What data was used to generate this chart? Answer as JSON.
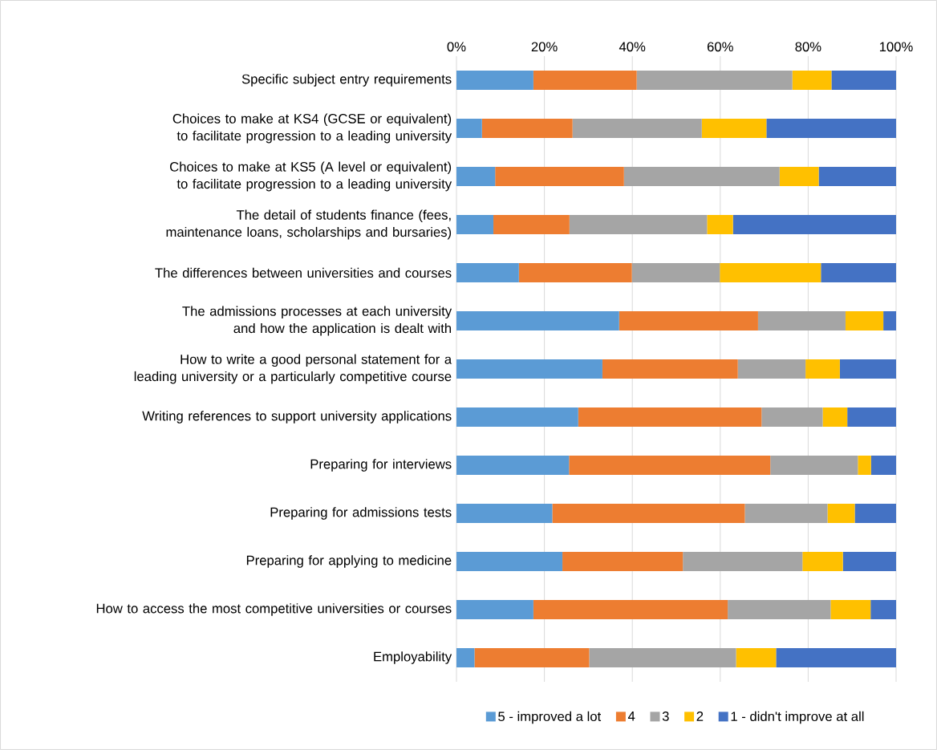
{
  "chart_data": {
    "type": "bar",
    "orientation": "horizontal",
    "stacked": true,
    "categories": [
      "Specific subject entry requirements",
      "Choices to make at KS4 (GCSE or equivalent) to facilitate progression to a leading university",
      "Choices to make at KS5 (A level or equivalent) to facilitate progression to a leading university",
      "The detail of students finance (fees, maintenance loans, scholarships and bursaries)",
      "The differences between universities and courses",
      "The admissions processes at each university and how the application is dealt with",
      "How to write a good personal statement for a leading university or a particularly competitive course",
      "Writing references to support university applications",
      "Preparing for interviews",
      "Preparing for admissions tests",
      "Preparing for applying to medicine",
      "How to access the most competitive universities or courses",
      "Employability"
    ],
    "series": [
      {
        "name": "5 - improved a lot",
        "color": "#5b9bd5",
        "values": [
          17.5,
          5.8,
          8.8,
          8.4,
          14.2,
          37.0,
          33.2,
          27.7,
          25.6,
          21.8,
          24.1,
          17.5,
          4.1
        ]
      },
      {
        "name": "4",
        "color": "#ed7d31",
        "values": [
          23.5,
          20.6,
          29.3,
          17.3,
          25.7,
          31.6,
          30.8,
          41.7,
          45.8,
          43.8,
          27.4,
          44.2,
          26.1
        ]
      },
      {
        "name": "3",
        "color": "#a5a5a5",
        "values": [
          35.4,
          29.4,
          35.4,
          31.3,
          20.0,
          19.9,
          15.4,
          13.9,
          19.9,
          18.8,
          27.2,
          23.4,
          33.4
        ]
      },
      {
        "name": "2",
        "color": "#ffc000",
        "values": [
          8.9,
          14.7,
          8.9,
          5.9,
          23.0,
          8.6,
          7.8,
          5.6,
          3.0,
          6.2,
          9.2,
          9.1,
          9.1
        ]
      },
      {
        "name": "1 - didn't improve at all",
        "color": "#4472c4",
        "values": [
          14.7,
          29.5,
          17.6,
          37.1,
          17.1,
          2.9,
          12.8,
          11.1,
          5.7,
          9.4,
          12.1,
          5.8,
          27.3
        ]
      }
    ],
    "xlim": [
      0,
      100
    ],
    "xticks": [
      {
        "value": 0,
        "label": "0%"
      },
      {
        "value": 20,
        "label": "20%"
      },
      {
        "value": 40,
        "label": "40%"
      },
      {
        "value": 60,
        "label": "60%"
      },
      {
        "value": 80,
        "label": "80%"
      },
      {
        "value": 100,
        "label": "100%"
      }
    ],
    "grid": "x",
    "legend": "bottom"
  }
}
